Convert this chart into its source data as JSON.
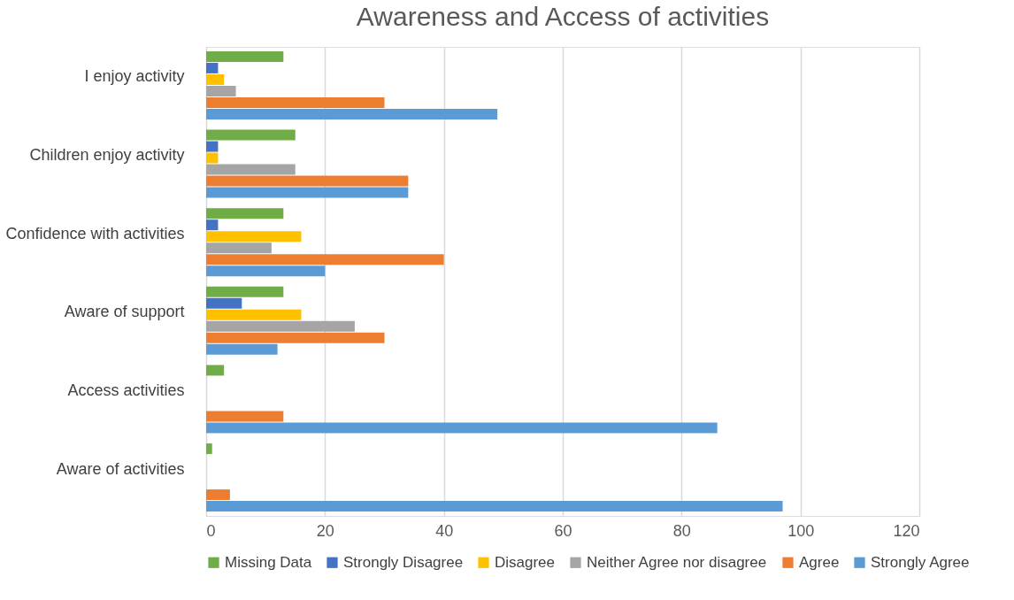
{
  "chart_data": {
    "type": "bar",
    "orientation": "horizontal",
    "title": "Awareness and Access of activities",
    "categories": [
      "I enjoy activity",
      "Children enjoy activity",
      "Confidence with activities",
      "Aware of support",
      "Access activities",
      "Aware of activities"
    ],
    "series": [
      {
        "name": "Missing Data",
        "color": "#70ad47",
        "values": [
          13,
          15,
          13,
          13,
          3,
          1
        ]
      },
      {
        "name": "Strongly Disagree",
        "color": "#4472c4",
        "values": [
          2,
          2,
          2,
          6,
          0,
          0
        ]
      },
      {
        "name": "Disagree",
        "color": "#ffc000",
        "values": [
          3,
          2,
          16,
          16,
          0,
          0
        ]
      },
      {
        "name": "Neither Agree nor disagree",
        "color": "#a5a5a5",
        "values": [
          5,
          15,
          11,
          25,
          0,
          0
        ]
      },
      {
        "name": "Agree",
        "color": "#ed7d31",
        "values": [
          30,
          34,
          40,
          30,
          13,
          4
        ]
      },
      {
        "name": "Strongly Agree",
        "color": "#5b9bd5",
        "values": [
          49,
          34,
          20,
          12,
          86,
          97
        ]
      }
    ],
    "xlim": [
      0,
      120
    ],
    "xticks": [
      0,
      20,
      40,
      60,
      80,
      100,
      120
    ],
    "grid": "x",
    "legend": "bottom"
  }
}
